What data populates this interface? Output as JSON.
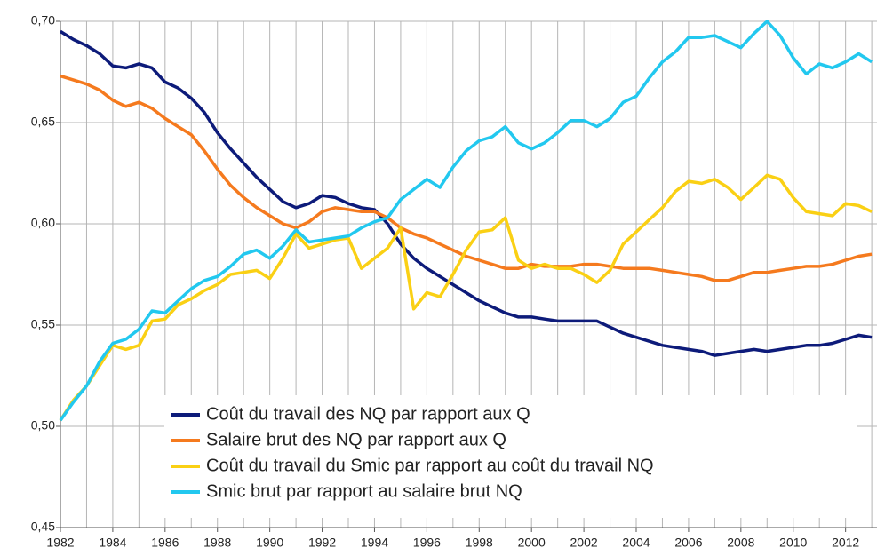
{
  "chart_data": {
    "type": "line",
    "x": [
      1982,
      1982.5,
      1983,
      1983.5,
      1984,
      1984.5,
      1985,
      1985.5,
      1986,
      1986.5,
      1987,
      1987.5,
      1988,
      1988.5,
      1989,
      1989.5,
      1990,
      1990.5,
      1991,
      1991.5,
      1992,
      1992.5,
      1993,
      1993.5,
      1994,
      1994.5,
      1995,
      1995.5,
      1996,
      1996.5,
      1997,
      1997.5,
      1998,
      1998.5,
      1999,
      1999.5,
      2000,
      2000.5,
      2001,
      2001.5,
      2002,
      2002.5,
      2003,
      2003.5,
      2004,
      2004.5,
      2005,
      2005.5,
      2006,
      2006.5,
      2007,
      2007.5,
      2008,
      2008.5,
      2009,
      2009.5,
      2010,
      2010.5,
      2011,
      2011.5,
      2012,
      2012.5,
      2013
    ],
    "series": [
      {
        "name": "Coût du travail des NQ par rapport aux Q",
        "color": "#0d1b7a",
        "values": [
          0.695,
          0.691,
          0.688,
          0.684,
          0.678,
          0.677,
          0.679,
          0.677,
          0.67,
          0.667,
          0.662,
          0.655,
          0.645,
          0.637,
          0.63,
          0.623,
          0.617,
          0.611,
          0.608,
          0.61,
          0.614,
          0.613,
          0.61,
          0.608,
          0.607,
          0.6,
          0.59,
          0.583,
          0.578,
          0.574,
          0.57,
          0.566,
          0.562,
          0.559,
          0.556,
          0.554,
          0.554,
          0.553,
          0.552,
          0.552,
          0.552,
          0.552,
          0.549,
          0.546,
          0.544,
          0.542,
          0.54,
          0.539,
          0.538,
          0.537,
          0.535,
          0.536,
          0.537,
          0.538,
          0.537,
          0.538,
          0.539,
          0.54,
          0.54,
          0.541,
          0.543,
          0.545,
          0.544
        ]
      },
      {
        "name": "Salaire brut des NQ par rapport aux Q",
        "color": "#f57a1e",
        "values": [
          0.673,
          0.671,
          0.669,
          0.666,
          0.661,
          0.658,
          0.66,
          0.657,
          0.652,
          0.648,
          0.644,
          0.636,
          0.627,
          0.619,
          0.613,
          0.608,
          0.604,
          0.6,
          0.598,
          0.601,
          0.606,
          0.608,
          0.607,
          0.606,
          0.606,
          0.603,
          0.598,
          0.595,
          0.593,
          0.59,
          0.587,
          0.584,
          0.582,
          0.58,
          0.578,
          0.578,
          0.58,
          0.579,
          0.579,
          0.579,
          0.58,
          0.58,
          0.579,
          0.578,
          0.578,
          0.578,
          0.577,
          0.576,
          0.575,
          0.574,
          0.572,
          0.572,
          0.574,
          0.576,
          0.576,
          0.577,
          0.578,
          0.579,
          0.579,
          0.58,
          0.582,
          0.584,
          0.585
        ]
      },
      {
        "name": "Coût du travail du Smic par rapport au coût du travail NQ",
        "color": "#fad014",
        "values": [
          0.503,
          0.513,
          0.52,
          0.53,
          0.54,
          0.538,
          0.54,
          0.552,
          0.553,
          0.56,
          0.563,
          0.567,
          0.57,
          0.575,
          0.576,
          0.577,
          0.573,
          0.583,
          0.595,
          0.588,
          0.59,
          0.592,
          0.593,
          0.578,
          0.583,
          0.588,
          0.598,
          0.558,
          0.566,
          0.564,
          0.575,
          0.587,
          0.596,
          0.597,
          0.603,
          0.582,
          0.578,
          0.58,
          0.578,
          0.578,
          0.575,
          0.571,
          0.577,
          0.59,
          0.596,
          0.602,
          0.608,
          0.616,
          0.621,
          0.62,
          0.622,
          0.618,
          0.612,
          0.618,
          0.624,
          0.622,
          0.613,
          0.606,
          0.605,
          0.604,
          0.61,
          0.609,
          0.606
        ]
      },
      {
        "name": "Smic brut par rapport au salaire brut NQ",
        "color": "#22c8ef",
        "values": [
          0.503,
          0.512,
          0.52,
          0.532,
          0.541,
          0.543,
          0.548,
          0.557,
          0.556,
          0.562,
          0.568,
          0.572,
          0.574,
          0.579,
          0.585,
          0.587,
          0.583,
          0.589,
          0.597,
          0.591,
          0.592,
          0.593,
          0.594,
          0.598,
          0.601,
          0.603,
          0.612,
          0.617,
          0.622,
          0.618,
          0.628,
          0.636,
          0.641,
          0.643,
          0.648,
          0.64,
          0.637,
          0.64,
          0.645,
          0.651,
          0.651,
          0.648,
          0.652,
          0.66,
          0.663,
          0.672,
          0.68,
          0.685,
          0.692,
          0.692,
          0.693,
          0.69,
          0.687,
          0.694,
          0.7,
          0.693,
          0.682,
          0.674,
          0.679,
          0.677,
          0.68,
          0.684,
          0.68
        ]
      }
    ],
    "xlim": [
      1982,
      2013.2
    ],
    "xticks": [
      1982,
      1984,
      1986,
      1988,
      1990,
      1992,
      1994,
      1996,
      1998,
      2000,
      2002,
      2004,
      2006,
      2008,
      2010,
      2012
    ],
    "x_minor_ticks": [
      1983,
      1985,
      1987,
      1989,
      1991,
      1993,
      1995,
      1997,
      1999,
      2001,
      2003,
      2005,
      2007,
      2009,
      2011,
      2013
    ],
    "ylim": [
      0.45,
      0.7
    ],
    "yticks": [
      {
        "value": 0.45,
        "label": "0,45"
      },
      {
        "value": 0.5,
        "label": "0,50"
      },
      {
        "value": 0.55,
        "label": "0,55"
      },
      {
        "value": 0.6,
        "label": "0,60"
      },
      {
        "value": 0.65,
        "label": "0,65"
      },
      {
        "value": 0.7,
        "label": "0,70"
      }
    ],
    "grid": true,
    "legend": "lower right"
  }
}
